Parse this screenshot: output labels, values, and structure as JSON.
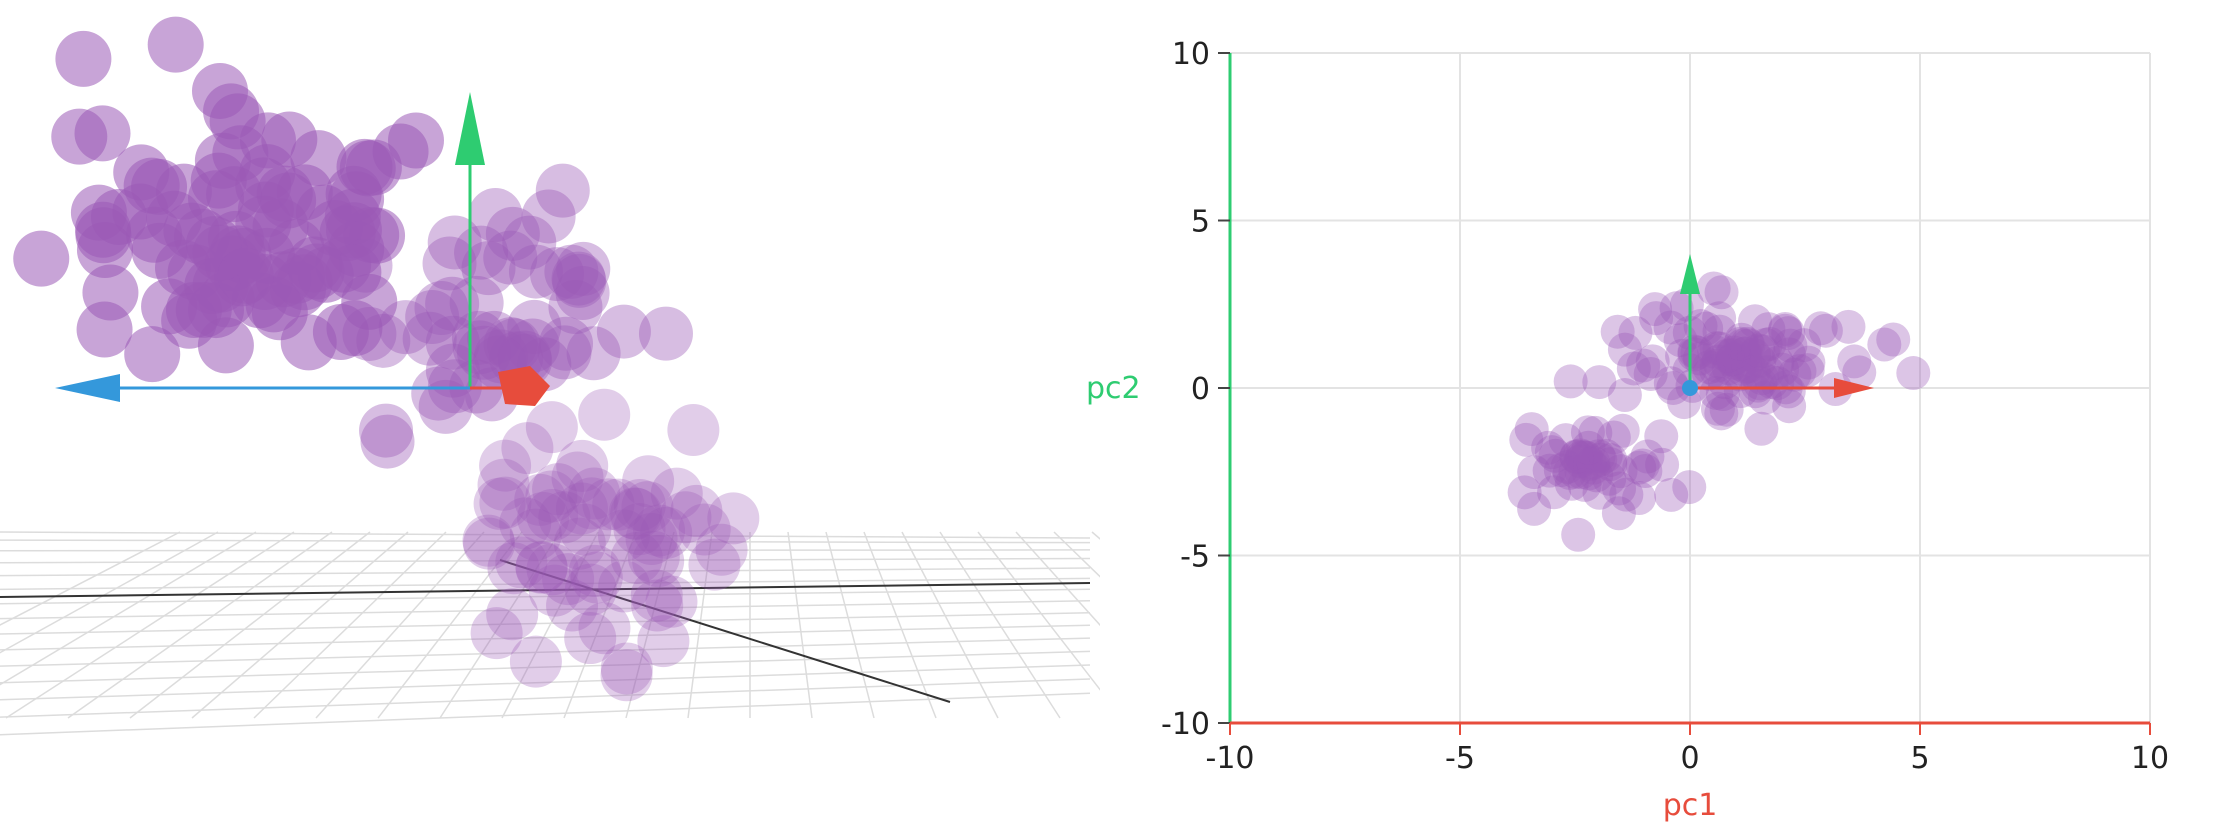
{
  "colors": {
    "point": "#9b59b6",
    "axis_pc1": "#e74c3c",
    "axis_pc2": "#2ecc71",
    "axis_pc3": "#3498db",
    "grid": "#e3e3e3",
    "tick_text": "#222222"
  },
  "view3d": {
    "type": "3d-scatter",
    "description": "Rotating 3D scatter of projected points with pc1/pc2/pc3 arrow axes and a perspective ground grid"
  },
  "chart_data": {
    "type": "scatter",
    "xlabel": "pc1",
    "ylabel": "pc2",
    "xlim": [
      -10,
      10
    ],
    "ylim": [
      -10,
      10
    ],
    "xticks": [
      -10,
      -5,
      0,
      5,
      10
    ],
    "yticks": [
      -10,
      -5,
      0,
      5,
      10
    ],
    "grid": true,
    "axis_arrows": [
      {
        "name": "pc1",
        "from": [
          0,
          0
        ],
        "to": [
          4,
          0
        ]
      },
      {
        "name": "pc2",
        "from": [
          0,
          0
        ],
        "to": [
          0,
          4
        ]
      }
    ],
    "clusters": [
      {
        "center": [
          1.0,
          1.0
        ],
        "spread": [
          1.7,
          1.1
        ],
        "count": 110
      },
      {
        "center": [
          -2.0,
          -2.4
        ],
        "spread": [
          0.9,
          0.8
        ],
        "count": 55
      }
    ]
  }
}
